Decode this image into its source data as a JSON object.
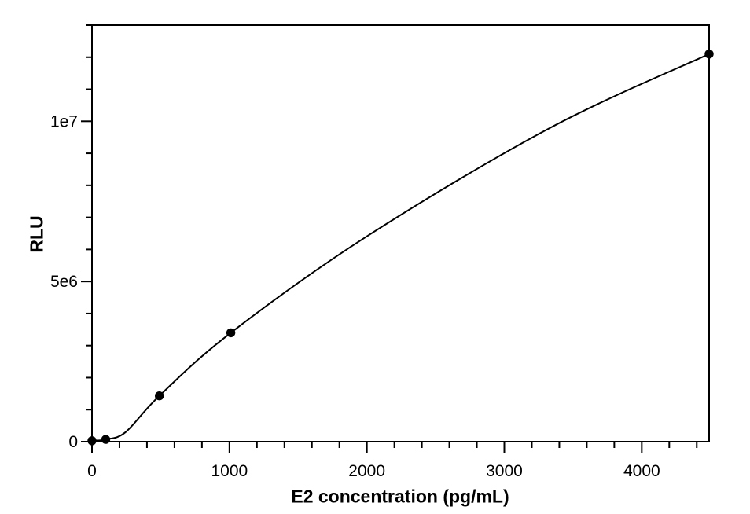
{
  "chart": {
    "xlabel": "E2 concentration (pg/mL)",
    "ylabel": "RLU"
  },
  "chart_data": {
    "type": "scatter",
    "title": "",
    "xlabel": "E2 concentration (pg/mL)",
    "ylabel": "RLU",
    "points": {
      "x": [
        0,
        100,
        490,
        1010,
        4490
      ],
      "y": [
        30000,
        70000,
        1430000,
        3400000,
        12100000
      ]
    },
    "curve_samples": {
      "x": [
        0,
        100,
        245,
        490,
        1010,
        2000,
        3335,
        4490
      ],
      "y": [
        30000,
        70000,
        300000,
        1430000,
        3400000,
        6410000,
        9800000,
        12100000
      ]
    },
    "xlim": [
      0,
      4490
    ],
    "ylim": [
      0,
      13000000
    ],
    "x_major_ticks": [
      {
        "value": 0,
        "label": "0"
      },
      {
        "value": 1000,
        "label": "1000"
      },
      {
        "value": 2000,
        "label": "2000"
      },
      {
        "value": 3000,
        "label": "3000"
      },
      {
        "value": 4000,
        "label": "4000"
      }
    ],
    "x_minor_ticks": [
      200,
      400,
      600,
      800,
      1200,
      1400,
      1600,
      1800,
      2200,
      2400,
      2600,
      2800,
      3200,
      3400,
      3600,
      3800,
      4200,
      4400
    ],
    "y_major_ticks": [
      {
        "value": 0,
        "label": "0"
      },
      {
        "value": 5000000,
        "label": "5e6"
      },
      {
        "value": 10000000,
        "label": "1e7"
      }
    ],
    "y_minor_ticks": [
      1000000,
      2000000,
      3000000,
      4000000,
      6000000,
      7000000,
      8000000,
      9000000,
      11000000,
      12000000,
      13000000
    ],
    "grid": false,
    "legend": "none",
    "marker": {
      "shape": "circle",
      "color": "#000000",
      "radius_px": 5.7
    },
    "line_color": "#000000",
    "axis_color": "#000000",
    "background": "#ffffff"
  }
}
